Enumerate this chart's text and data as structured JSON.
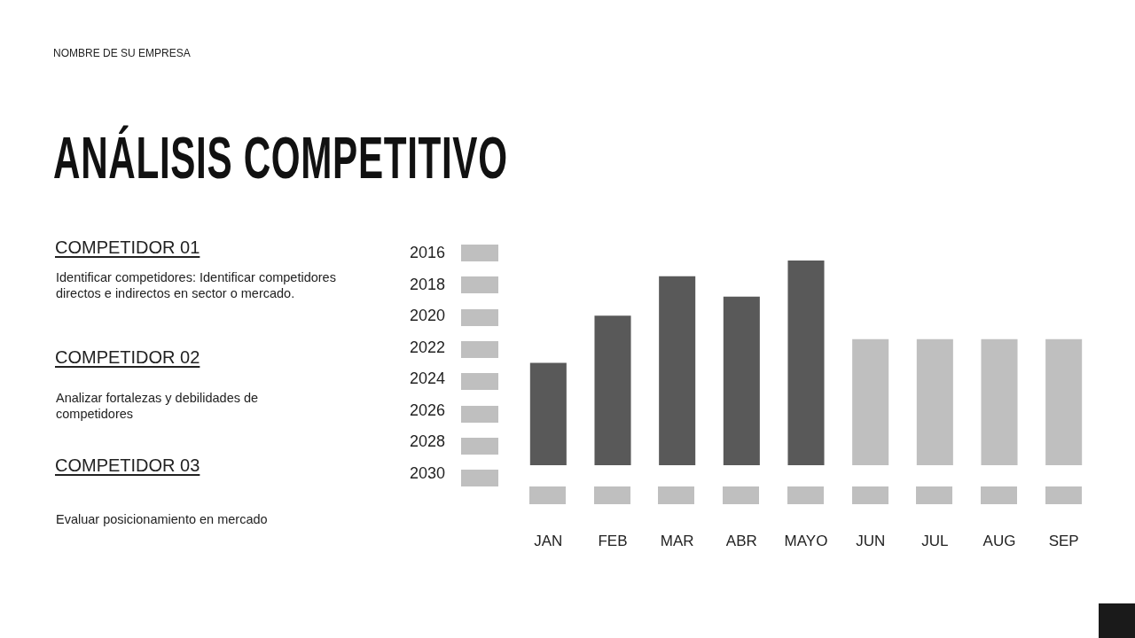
{
  "chart_data": {
    "type": "bar",
    "title": "ANÁLISIS COMPETITIVO",
    "annotations": [
      "NOMBRE DE SU EMPRESA",
      "COMPETIDOR 01",
      "Identificar competidores: Identificar competidores directos e indirectos en sector o mercado.",
      "COMPETIDOR 02",
      "Analizar fortalezas y debilidades de competidores",
      "COMPETIDOR 03",
      "Evaluar posicionamiento en mercado"
    ],
    "categories": [
      "JAN",
      "FEB",
      "MAR",
      "ABR",
      "MAYO",
      "JUN",
      "JUL",
      "AUG",
      "SEP"
    ],
    "base": [
      2029.5,
      2029.5,
      2029.5,
      2029.5,
      2029.5,
      2029.5,
      2029.5,
      2029.5,
      2029.5
    ],
    "values": [
      -6.5,
      -9.5,
      -12,
      -10.7,
      -13,
      -8,
      -8,
      -8,
      -8
    ],
    "colors": [
      "#595959",
      "#595959",
      "#595959",
      "#595959",
      "#595959",
      "#bfbfbf",
      "#bfbfbf",
      "#bfbfbf",
      "#bfbfbf"
    ],
    "ylim": [
      2030,
      2016
    ],
    "yticks": [
      2016,
      2018,
      2020,
      2022,
      2024,
      2026,
      2028,
      2030
    ],
    "grid": false
  }
}
